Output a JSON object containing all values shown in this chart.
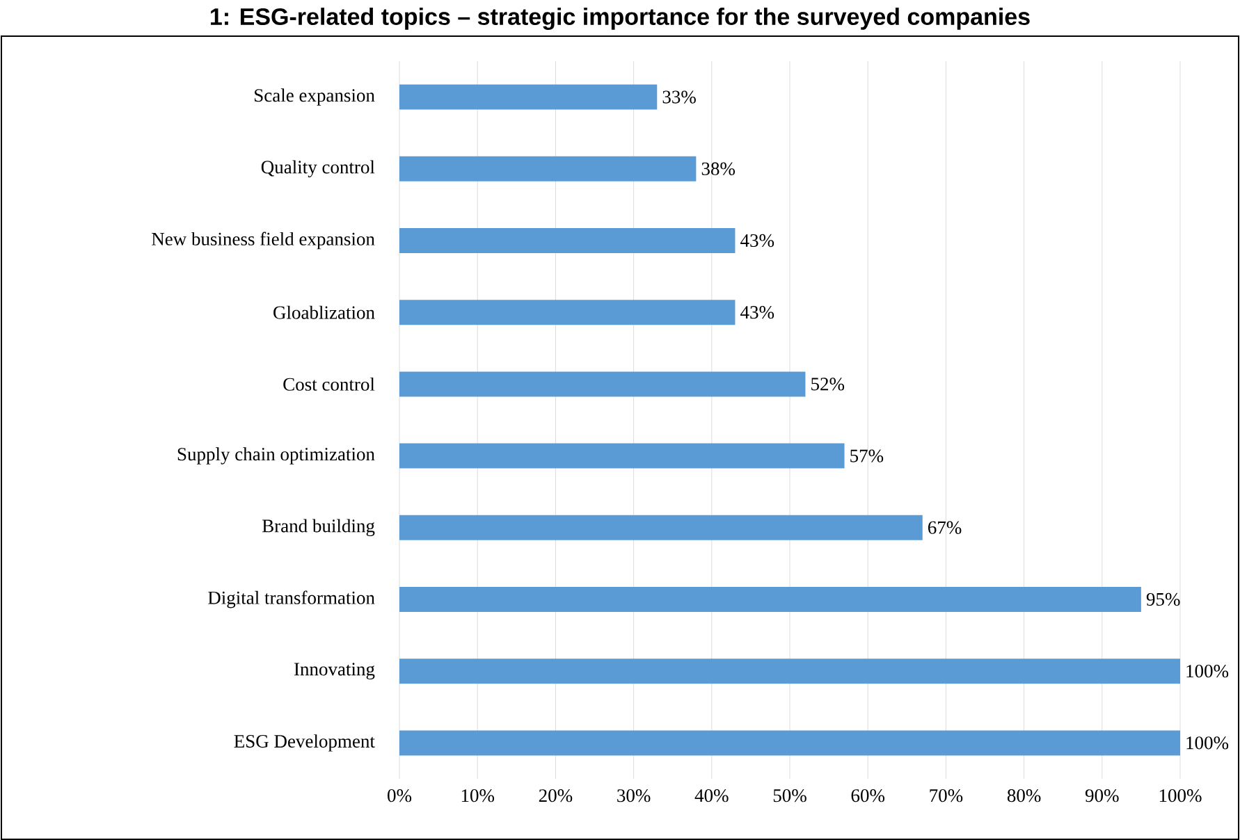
{
  "chart_data": {
    "type": "bar",
    "orientation": "horizontal",
    "title": "1: ESG-related topics – strategic importance for the surveyed companies",
    "categories": [
      "Scale expansion",
      "Quality control",
      "New business field expansion",
      "Gloablization",
      "Cost control",
      "Supply chain optimization",
      "Brand building",
      "Digital transformation",
      "Innovating",
      "ESG  Development"
    ],
    "values": [
      33,
      38,
      43,
      43,
      52,
      57,
      67,
      95,
      100,
      100
    ],
    "value_labels": [
      "33%",
      "38%",
      "43%",
      "43%",
      "52%",
      "57%",
      "67%",
      "95%",
      "100%",
      "100%"
    ],
    "color": "#5b9bd5",
    "xlim": [
      0,
      100
    ],
    "xticks": [
      {
        "value": 0,
        "label": "0%"
      },
      {
        "value": 10,
        "label": "10%"
      },
      {
        "value": 20,
        "label": "20%"
      },
      {
        "value": 30,
        "label": "30%"
      },
      {
        "value": 40,
        "label": "40%"
      },
      {
        "value": 50,
        "label": "50%"
      },
      {
        "value": 60,
        "label": "60%"
      },
      {
        "value": 70,
        "label": "70%"
      },
      {
        "value": 80,
        "label": "80%"
      },
      {
        "value": 90,
        "label": "90%"
      },
      {
        "value": 100,
        "label": "100%"
      }
    ],
    "grid": "x"
  }
}
